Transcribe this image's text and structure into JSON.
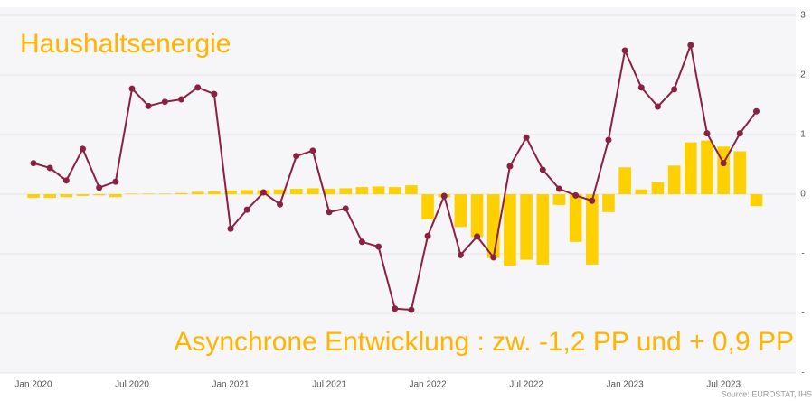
{
  "chart_data": {
    "type": "bar_line",
    "title": "Haushaltsenergie",
    "annotation": "Asynchrone Entwicklung : zw. -1,2 PP und + 0,9 PP",
    "source": "Source: EUROSTAT, IHS",
    "categories": [
      "Jan 2020",
      null,
      null,
      null,
      null,
      null,
      "Jul 2020",
      null,
      null,
      null,
      null,
      null,
      "Jan 2021",
      null,
      null,
      null,
      null,
      null,
      "Jul 2021",
      null,
      null,
      null,
      null,
      null,
      "Jan 2022",
      null,
      null,
      null,
      null,
      null,
      "Jul 2022",
      null,
      null,
      null,
      null,
      null,
      "Jan 2023",
      null,
      null,
      null,
      null,
      null,
      "Jul 2023",
      null,
      null
    ],
    "series": [
      {
        "type": "bar",
        "color": "#ffd000",
        "values": [
          -0.06,
          -0.06,
          -0.05,
          -0.03,
          -0.02,
          -0.05,
          0.01,
          0.01,
          0.01,
          0.02,
          0.04,
          0.05,
          0.06,
          0.07,
          0.07,
          0.08,
          0.09,
          0.1,
          0.09,
          0.1,
          0.12,
          0.13,
          0.12,
          0.15,
          -0.42,
          -0.05,
          -0.55,
          -0.72,
          -1.07,
          -1.2,
          -1.1,
          -1.18,
          -0.18,
          -0.8,
          -1.18,
          -0.3,
          0.45,
          0.08,
          0.2,
          0.48,
          0.87,
          0.9,
          0.8,
          0.72,
          -0.2
        ]
      },
      {
        "type": "line",
        "color": "#8b2040",
        "values": [
          0.52,
          0.44,
          0.23,
          0.76,
          0.11,
          0.21,
          1.77,
          1.48,
          1.55,
          1.59,
          1.79,
          1.68,
          -0.58,
          -0.26,
          0.03,
          -0.17,
          0.64,
          0.73,
          -0.3,
          -0.24,
          -0.8,
          -0.88,
          -1.92,
          -1.94,
          -0.7,
          -0.03,
          -1.02,
          -0.71,
          -1.06,
          0.47,
          0.95,
          0.41,
          0.09,
          -0.02,
          -0.11,
          0.91,
          2.41,
          1.79,
          1.47,
          1.76,
          2.5,
          1.02,
          0.52,
          1.02,
          1.39
        ]
      }
    ],
    "ylim": [
      -3,
      3
    ],
    "yticks": [
      {
        "value": -3,
        "label": "-"
      },
      {
        "value": -2,
        "label": "-"
      },
      {
        "value": -1,
        "label": "-"
      },
      0,
      1,
      2,
      3
    ],
    "grid": true
  }
}
